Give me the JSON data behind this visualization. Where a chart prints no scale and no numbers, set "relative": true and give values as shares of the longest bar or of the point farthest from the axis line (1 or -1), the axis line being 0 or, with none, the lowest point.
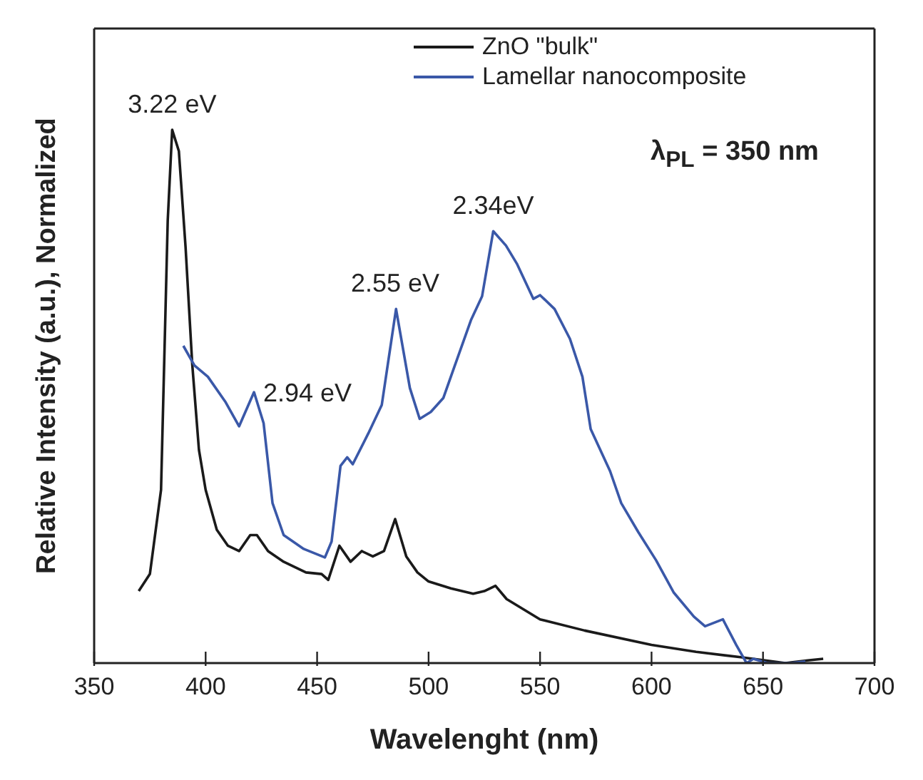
{
  "chart_data": {
    "type": "line",
    "relative": true,
    "xlabel": "Wavelenght (nm)",
    "ylabel": "Relative Intensity (a.u.), Normalized",
    "xlim": [
      350,
      700
    ],
    "xticks": [
      350,
      400,
      450,
      500,
      550,
      600,
      650,
      700
    ],
    "legend": "top right",
    "line_style": "solid",
    "marker": "none",
    "annotations": [
      {
        "text": "3.22 eV",
        "x": 385,
        "y": 1.0
      },
      {
        "text": "2.94 eV",
        "x": 422,
        "y": 0.508
      },
      {
        "text": "2.55 eV",
        "x": 485,
        "y": 0.664
      },
      {
        "text": "2.34eV",
        "x": 529,
        "y": 0.81
      },
      "λ$_{PL}$ = 350 nm"
    ],
    "series": [
      {
        "name": "ZnO \"bulk\"",
        "color": "#1a1a1a",
        "x": [
          370,
          375,
          380,
          383,
          385,
          388,
          391,
          394,
          397,
          400,
          405,
          410,
          415,
          420,
          423,
          428,
          435,
          445,
          452,
          455,
          460,
          465,
          470,
          475,
          480,
          485,
          490,
          495,
          500,
          510,
          520,
          525,
          530,
          535,
          550,
          570,
          600,
          620,
          640,
          660,
          670,
          677
        ],
        "values": [
          0.135,
          0.167,
          0.325,
          0.83,
          1.0,
          0.96,
          0.78,
          0.56,
          0.4,
          0.325,
          0.25,
          0.22,
          0.21,
          0.24,
          0.24,
          0.21,
          0.19,
          0.17,
          0.167,
          0.156,
          0.22,
          0.19,
          0.21,
          0.2,
          0.21,
          0.27,
          0.2,
          0.17,
          0.153,
          0.14,
          0.13,
          0.135,
          0.145,
          0.12,
          0.082,
          0.061,
          0.034,
          0.021,
          0.011,
          0,
          0.005,
          0.008
        ]
      },
      {
        "name": "Lamellar nanocomposite",
        "color": "#3a58a8",
        "x": [
          390,
          395,
          401,
          409,
          415,
          421.7,
          426,
          430,
          435,
          444,
          453.5,
          456.5,
          460.5,
          463.5,
          466,
          473,
          479,
          485.4,
          491.6,
          496,
          501,
          506.6,
          511.6,
          519,
          524,
          529,
          534.7,
          539.6,
          547,
          550,
          556.5,
          563.4,
          569,
          572.7,
          581.4,
          586.4,
          594,
          602,
          610,
          619,
          624,
          632,
          638,
          642.6,
          645.7,
          652,
          662.5,
          669
        ],
        "values": [
          0.595,
          0.558,
          0.537,
          0.489,
          0.444,
          0.508,
          0.45,
          0.3,
          0.24,
          0.214,
          0.198,
          0.228,
          0.37,
          0.386,
          0.373,
          0.431,
          0.484,
          0.664,
          0.516,
          0.458,
          0.471,
          0.497,
          0.556,
          0.643,
          0.688,
          0.81,
          0.783,
          0.749,
          0.683,
          0.69,
          0.664,
          0.608,
          0.537,
          0.439,
          0.36,
          0.3,
          0.246,
          0.193,
          0.132,
          0.087,
          0.069,
          0.082,
          0.034,
          0,
          0.008,
          0,
          0,
          0.003
        ]
      }
    ]
  }
}
